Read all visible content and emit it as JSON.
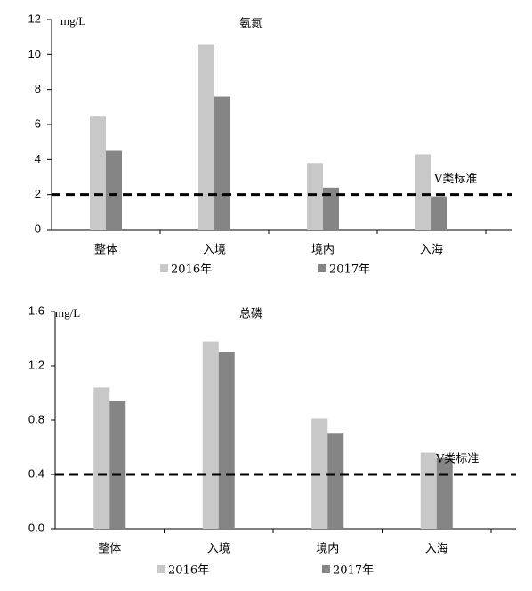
{
  "chart_data": [
    {
      "type": "bar",
      "title": "氨氮",
      "y_unit": "mg/L",
      "categories": [
        "整体",
        "入境",
        "境内",
        "入海"
      ],
      "series": [
        {
          "name": "2016年",
          "color": "#c8c8c8",
          "values": [
            6.5,
            10.6,
            3.8,
            4.3
          ]
        },
        {
          "name": "2017年",
          "color": "#858585",
          "values": [
            4.5,
            7.6,
            2.4,
            1.9
          ]
        }
      ],
      "ylim": [
        0,
        12
      ],
      "yticks": [
        0,
        2,
        4,
        6,
        8,
        10,
        12
      ],
      "reference_line": {
        "value": 2,
        "label": "V类标准"
      }
    },
    {
      "type": "bar",
      "title": "总磷",
      "y_unit": "mg/L",
      "categories": [
        "整体",
        "入境",
        "境内",
        "入海"
      ],
      "series": [
        {
          "name": "2016年",
          "color": "#c8c8c8",
          "values": [
            1.04,
            1.38,
            0.81,
            0.56
          ]
        },
        {
          "name": "2017年",
          "color": "#858585",
          "values": [
            0.94,
            1.3,
            0.7,
            0.52
          ]
        }
      ],
      "ylim": [
        0,
        1.6
      ],
      "yticks": [
        {
          "value": 0,
          "label": "0.0"
        },
        0.4,
        0.8,
        1.2,
        1.6
      ],
      "reference_line": {
        "value": 0.4,
        "label": "V类标准"
      }
    }
  ]
}
